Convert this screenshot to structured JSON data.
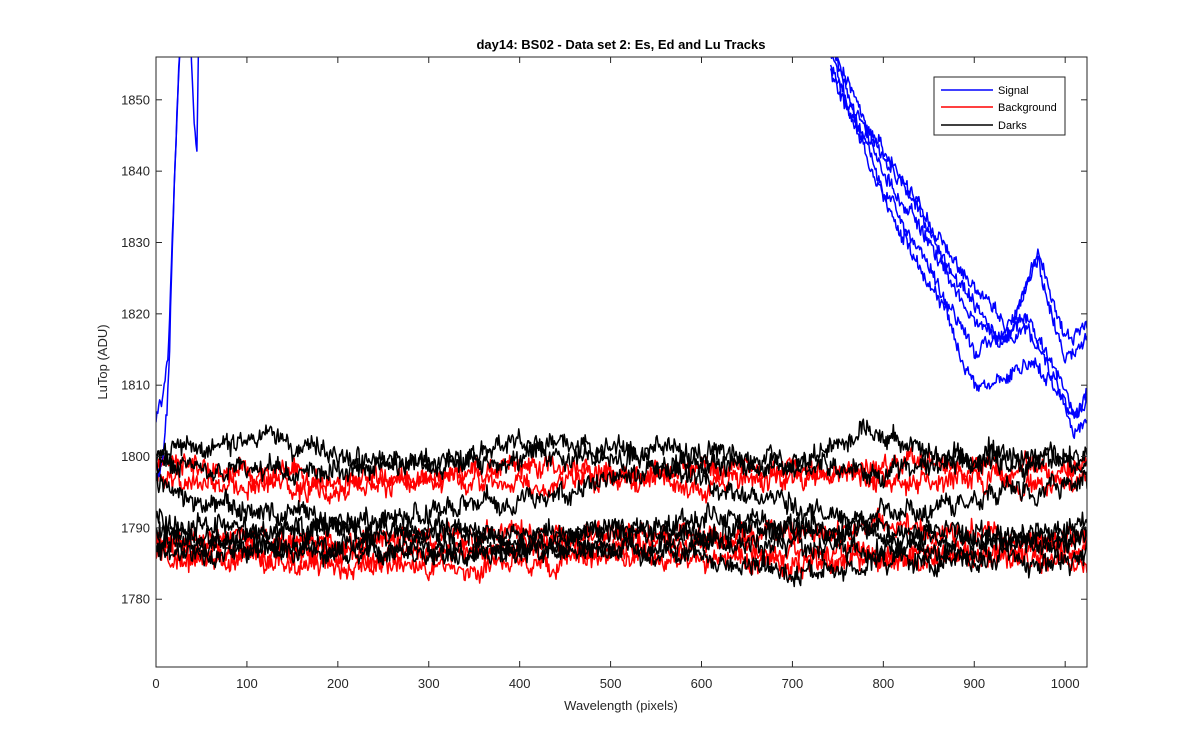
{
  "chart_data": {
    "type": "line",
    "title": "day14: BS02 - Data set 2: Es, Ed and Lu Tracks",
    "xlabel": "Wavelength (pixels)",
    "ylabel": "LuTop (ADU)",
    "xlim": [
      0,
      1024
    ],
    "ylim": [
      1770.5,
      1856
    ],
    "xticks": [
      0,
      100,
      200,
      300,
      400,
      500,
      600,
      700,
      800,
      900,
      1000
    ],
    "yticks": [
      1780,
      1790,
      1800,
      1810,
      1820,
      1830,
      1840,
      1850
    ],
    "grid": false,
    "legend_position": "top-right",
    "legend": [
      {
        "label": "Signal",
        "color": "#0000ff"
      },
      {
        "label": "Background",
        "color": "#ff0000"
      },
      {
        "label": "Darks",
        "color": "#000000"
      }
    ],
    "series": [
      {
        "group": "Signal",
        "color": "#0000ff",
        "noise": 1.0,
        "points": [
          [
            0,
            1796
          ],
          [
            8,
            1800
          ],
          [
            12,
            1806
          ],
          [
            15,
            1815
          ],
          [
            18,
            1830
          ],
          [
            22,
            1845
          ],
          [
            26,
            1858
          ],
          [
            30,
            1870
          ]
        ]
      },
      {
        "group": "Signal",
        "color": "#0000ff",
        "noise": 1.0,
        "points": [
          [
            0,
            1805
          ],
          [
            8,
            1808
          ],
          [
            14,
            1816
          ],
          [
            18,
            1832
          ],
          [
            23,
            1848
          ],
          [
            28,
            1860
          ],
          [
            33,
            1875
          ]
        ]
      },
      {
        "group": "Signal",
        "color": "#0000ff",
        "noise": 0.8,
        "points": [
          [
            36,
            1870
          ],
          [
            39,
            1855
          ],
          [
            42,
            1847
          ],
          [
            45,
            1843
          ],
          [
            47,
            1860
          ],
          [
            49,
            1875
          ]
        ]
      },
      {
        "group": "Signal",
        "color": "#0000ff",
        "noise": 1.0,
        "points": [
          [
            742,
            1858
          ],
          [
            760,
            1852
          ],
          [
            800,
            1843
          ],
          [
            850,
            1833
          ],
          [
            900,
            1823
          ],
          [
            940,
            1818
          ],
          [
            970,
            1829
          ],
          [
            1000,
            1817
          ],
          [
            1024,
            1819
          ]
        ]
      },
      {
        "group": "Signal",
        "color": "#0000ff",
        "noise": 1.0,
        "points": [
          [
            742,
            1857
          ],
          [
            760,
            1851
          ],
          [
            800,
            1842
          ],
          [
            850,
            1832
          ],
          [
            900,
            1821
          ],
          [
            930,
            1817
          ],
          [
            970,
            1827
          ],
          [
            1000,
            1814
          ],
          [
            1024,
            1816
          ]
        ]
      },
      {
        "group": "Signal",
        "color": "#0000ff",
        "noise": 1.0,
        "points": [
          [
            742,
            1856
          ],
          [
            760,
            1850
          ],
          [
            800,
            1840
          ],
          [
            850,
            1830
          ],
          [
            900,
            1819
          ],
          [
            930,
            1816
          ],
          [
            960,
            1820
          ],
          [
            990,
            1812
          ],
          [
            1010,
            1806
          ],
          [
            1024,
            1808
          ]
        ]
      },
      {
        "group": "Signal",
        "color": "#0000ff",
        "noise": 1.0,
        "points": [
          [
            742,
            1855
          ],
          [
            760,
            1849
          ],
          [
            800,
            1838
          ],
          [
            850,
            1827
          ],
          [
            900,
            1815
          ],
          [
            930,
            1816
          ],
          [
            960,
            1818
          ],
          [
            985,
            1811
          ],
          [
            1005,
            1806
          ],
          [
            1024,
            1807
          ]
        ]
      },
      {
        "group": "Signal",
        "color": "#0000ff",
        "noise": 1.0,
        "points": [
          [
            742,
            1854
          ],
          [
            760,
            1848
          ],
          [
            800,
            1836
          ],
          [
            850,
            1824
          ],
          [
            880,
            1817
          ],
          [
            900,
            1810
          ],
          [
            930,
            1811
          ],
          [
            960,
            1813
          ],
          [
            990,
            1810
          ],
          [
            1010,
            1803
          ],
          [
            1024,
            1807
          ]
        ]
      },
      {
        "group": "Background",
        "color": "#ff0000",
        "noise": 1.4,
        "points": [
          [
            0,
            1799
          ],
          [
            200,
            1797
          ],
          [
            400,
            1796
          ],
          [
            600,
            1798
          ],
          [
            800,
            1797
          ],
          [
            1024,
            1796
          ]
        ]
      },
      {
        "group": "Background",
        "color": "#ff0000",
        "noise": 1.4,
        "points": [
          [
            0,
            1797
          ],
          [
            200,
            1795
          ],
          [
            400,
            1799
          ],
          [
            600,
            1796
          ],
          [
            800,
            1799
          ],
          [
            1024,
            1798
          ]
        ]
      },
      {
        "group": "Background",
        "color": "#ff0000",
        "noise": 1.4,
        "points": [
          [
            0,
            1789
          ],
          [
            200,
            1788
          ],
          [
            400,
            1790
          ],
          [
            600,
            1789
          ],
          [
            800,
            1790
          ],
          [
            1024,
            1788
          ]
        ]
      },
      {
        "group": "Background",
        "color": "#ff0000",
        "noise": 1.4,
        "points": [
          [
            0,
            1787
          ],
          [
            200,
            1786
          ],
          [
            400,
            1787
          ],
          [
            600,
            1788
          ],
          [
            800,
            1786
          ],
          [
            1024,
            1787
          ]
        ]
      },
      {
        "group": "Background",
        "color": "#ff0000",
        "noise": 1.4,
        "points": [
          [
            0,
            1786
          ],
          [
            200,
            1785
          ],
          [
            340,
            1784
          ],
          [
            500,
            1786
          ],
          [
            700,
            1785
          ],
          [
            900,
            1786
          ],
          [
            1024,
            1785
          ]
        ]
      },
      {
        "group": "Darks",
        "color": "#000000",
        "noise": 1.4,
        "points": [
          [
            0,
            1800
          ],
          [
            100,
            1803
          ],
          [
            200,
            1800
          ],
          [
            300,
            1799
          ],
          [
            400,
            1802
          ],
          [
            550,
            1801
          ],
          [
            700,
            1799
          ],
          [
            780,
            1803
          ],
          [
            900,
            1800
          ],
          [
            1024,
            1800
          ]
        ]
      },
      {
        "group": "Darks",
        "color": "#000000",
        "noise": 1.4,
        "points": [
          [
            0,
            1799
          ],
          [
            150,
            1798
          ],
          [
            300,
            1799
          ],
          [
            450,
            1800
          ],
          [
            600,
            1799
          ],
          [
            750,
            1798
          ],
          [
            900,
            1799
          ],
          [
            1024,
            1799
          ]
        ]
      },
      {
        "group": "Darks",
        "color": "#000000",
        "noise": 1.4,
        "points": [
          [
            0,
            1797
          ],
          [
            60,
            1793
          ],
          [
            150,
            1792
          ],
          [
            250,
            1791
          ],
          [
            350,
            1793
          ],
          [
            450,
            1795
          ],
          [
            550,
            1798
          ],
          [
            650,
            1795
          ],
          [
            750,
            1792
          ],
          [
            850,
            1793
          ],
          [
            1024,
            1796
          ]
        ]
      },
      {
        "group": "Darks",
        "color": "#000000",
        "noise": 1.4,
        "points": [
          [
            0,
            1791
          ],
          [
            150,
            1789
          ],
          [
            300,
            1790
          ],
          [
            450,
            1789
          ],
          [
            600,
            1791
          ],
          [
            750,
            1790
          ],
          [
            900,
            1789
          ],
          [
            1024,
            1790
          ]
        ]
      },
      {
        "group": "Darks",
        "color": "#000000",
        "noise": 1.4,
        "points": [
          [
            0,
            1789
          ],
          [
            200,
            1790
          ],
          [
            400,
            1788
          ],
          [
            600,
            1790
          ],
          [
            800,
            1789
          ],
          [
            1024,
            1788
          ]
        ]
      },
      {
        "group": "Darks",
        "color": "#000000",
        "noise": 1.4,
        "points": [
          [
            0,
            1788
          ],
          [
            200,
            1787
          ],
          [
            400,
            1787
          ],
          [
            600,
            1788
          ],
          [
            800,
            1787
          ],
          [
            1024,
            1788
          ]
        ]
      },
      {
        "group": "Darks",
        "color": "#000000",
        "noise": 1.4,
        "points": [
          [
            0,
            1787
          ],
          [
            200,
            1786
          ],
          [
            400,
            1787
          ],
          [
            600,
            1786
          ],
          [
            700,
            1784
          ],
          [
            800,
            1785
          ],
          [
            1024,
            1786
          ]
        ]
      }
    ]
  }
}
